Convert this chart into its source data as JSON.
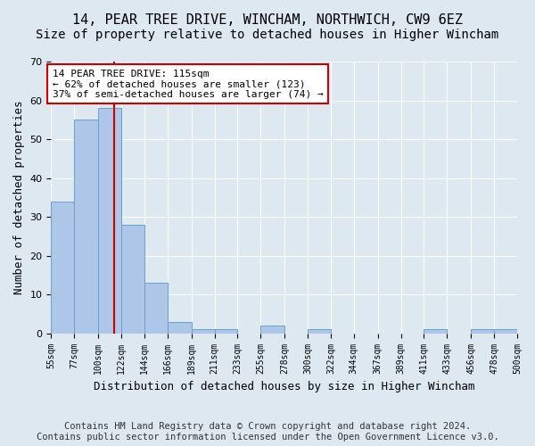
{
  "title1": "14, PEAR TREE DRIVE, WINCHAM, NORTHWICH, CW9 6EZ",
  "title2": "Size of property relative to detached houses in Higher Wincham",
  "xlabel": "Distribution of detached houses by size in Higher Wincham",
  "ylabel": "Number of detached properties",
  "bin_edges": [
    55,
    77,
    100,
    122,
    144,
    166,
    189,
    211,
    233,
    255,
    278,
    300,
    322,
    344,
    367,
    389,
    411,
    433,
    456,
    478,
    500
  ],
  "bar_heights": [
    34,
    55,
    58,
    28,
    13,
    3,
    1,
    1,
    0,
    2,
    0,
    1,
    0,
    0,
    0,
    0,
    1,
    0,
    1,
    1
  ],
  "bar_color": "#aec6e8",
  "bar_edge_color": "#6aa0cc",
  "vline_x": 115,
  "vline_color": "#cc0000",
  "annotation_text": "14 PEAR TREE DRIVE: 115sqm\n← 62% of detached houses are smaller (123)\n37% of semi-detached houses are larger (74) →",
  "annotation_box_color": "#ffffff",
  "annotation_box_edge": "#cc0000",
  "background_color": "#dde8f0",
  "plot_bg_color": "#dde8f0",
  "footer_line1": "Contains HM Land Registry data © Crown copyright and database right 2024.",
  "footer_line2": "Contains public sector information licensed under the Open Government Licence v3.0.",
  "ylim": [
    0,
    70
  ],
  "title1_fontsize": 11,
  "title2_fontsize": 10,
  "xlabel_fontsize": 9,
  "ylabel_fontsize": 9,
  "tick_fontsize": 7,
  "annotation_fontsize": 8,
  "footer_fontsize": 7.5
}
